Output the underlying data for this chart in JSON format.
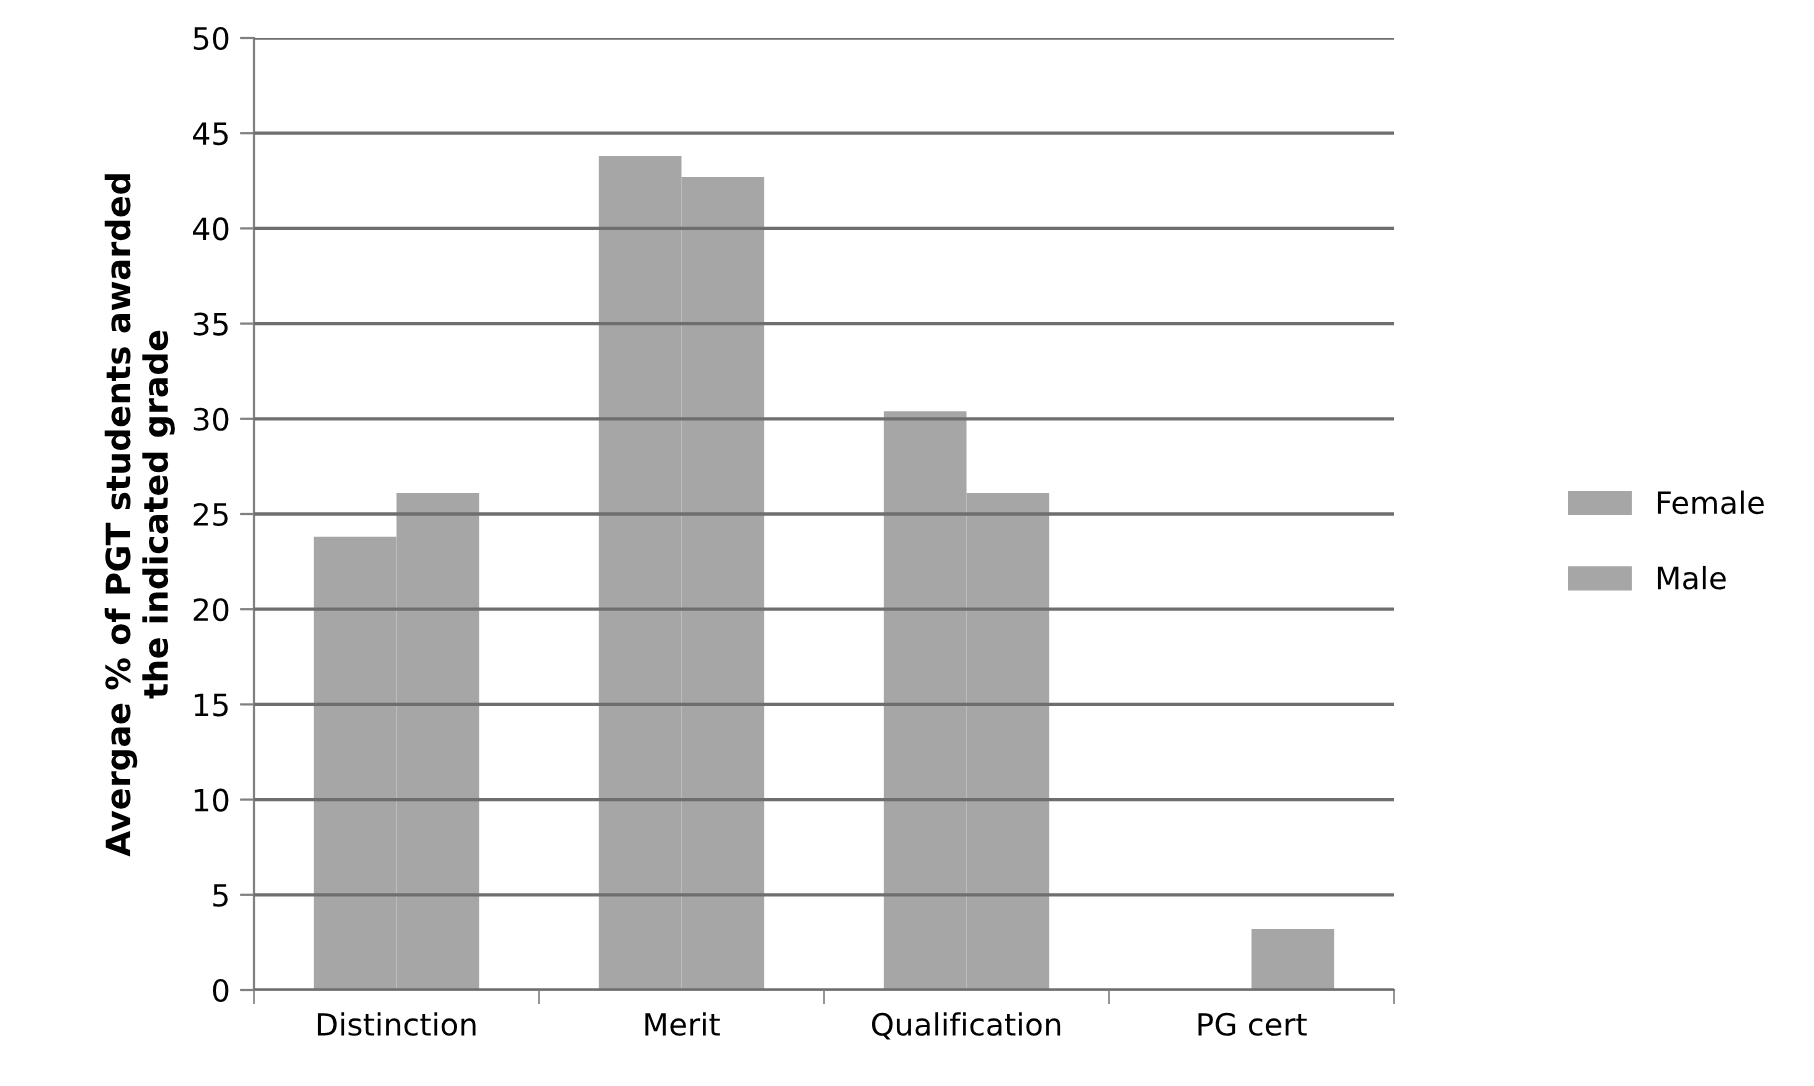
{
  "chart_data": {
    "type": "bar",
    "ylabel": "Avergae % of PGT students awarded\nthe indicated grade",
    "categories": [
      "Distinction",
      "Merit",
      "Qualification",
      "PG cert"
    ],
    "series": [
      {
        "name": "Female",
        "color": "#a6a6a6",
        "values": [
          23.8,
          43.8,
          30.4,
          0
        ]
      },
      {
        "name": "Male",
        "color": "#a6a6a6",
        "values": [
          26.1,
          42.7,
          26.1,
          3.2
        ]
      }
    ],
    "ylim": [
      0,
      50
    ],
    "yticks": [
      0,
      5,
      10,
      15,
      20,
      25,
      30,
      35,
      40,
      45,
      50
    ],
    "grid": "y",
    "legend": "right"
  }
}
